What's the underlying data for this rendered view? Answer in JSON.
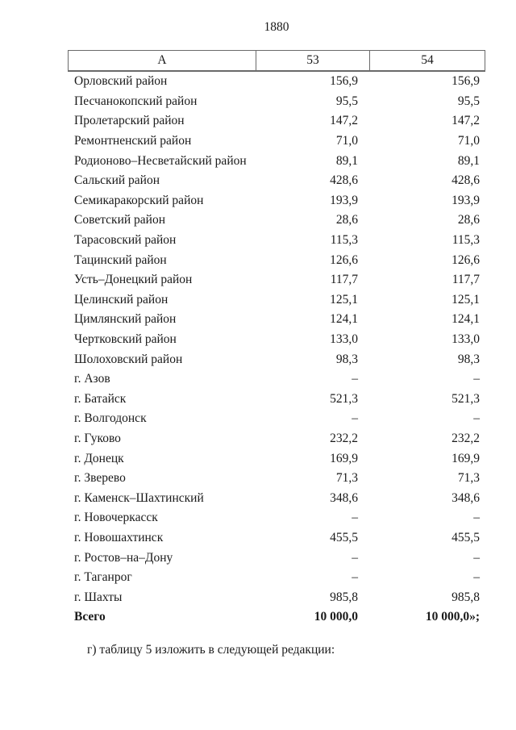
{
  "page": {
    "number": "1880",
    "footer_text": "г) таблицу 5 изложить в следующей редакции:"
  },
  "table": {
    "columns": [
      "А",
      "53",
      "54"
    ],
    "rows": [
      {
        "label": "Орловский район",
        "v53": "156,9",
        "v54": "156,9"
      },
      {
        "label": "Песчанокопский район",
        "v53": "95,5",
        "v54": "95,5"
      },
      {
        "label": "Пролетарский район",
        "v53": "147,2",
        "v54": "147,2"
      },
      {
        "label": "Ремонтненский район",
        "v53": "71,0",
        "v54": "71,0"
      },
      {
        "label": "Родионово–Несветайский район",
        "v53": "89,1",
        "v54": "89,1"
      },
      {
        "label": "Сальский район",
        "v53": "428,6",
        "v54": "428,6"
      },
      {
        "label": "Семикаракорский район",
        "v53": "193,9",
        "v54": "193,9"
      },
      {
        "label": "Советский район",
        "v53": "28,6",
        "v54": "28,6"
      },
      {
        "label": "Тарасовский район",
        "v53": "115,3",
        "v54": "115,3"
      },
      {
        "label": "Тацинский район",
        "v53": "126,6",
        "v54": "126,6"
      },
      {
        "label": "Усть–Донецкий район",
        "v53": "117,7",
        "v54": "117,7"
      },
      {
        "label": "Целинский район",
        "v53": "125,1",
        "v54": "125,1"
      },
      {
        "label": "Цимлянский район",
        "v53": "124,1",
        "v54": "124,1"
      },
      {
        "label": "Чертковский район",
        "v53": "133,0",
        "v54": "133,0"
      },
      {
        "label": "Шолоховский район",
        "v53": "98,3",
        "v54": "98,3"
      },
      {
        "label": "г. Азов",
        "v53": "–",
        "v54": "–"
      },
      {
        "label": "г. Батайск",
        "v53": "521,3",
        "v54": "521,3"
      },
      {
        "label": "г. Волгодонск",
        "v53": "–",
        "v54": "–"
      },
      {
        "label": "г. Гуково",
        "v53": "232,2",
        "v54": "232,2"
      },
      {
        "label": "г. Донецк",
        "v53": "169,9",
        "v54": "169,9"
      },
      {
        "label": "г. Зверево",
        "v53": "71,3",
        "v54": "71,3"
      },
      {
        "label": "г. Каменск–Шахтинский",
        "v53": "348,6",
        "v54": "348,6"
      },
      {
        "label": "г. Новочеркасск",
        "v53": "–",
        "v54": "–"
      },
      {
        "label": "г. Новошахтинск",
        "v53": "455,5",
        "v54": "455,5"
      },
      {
        "label": "г. Ростов–на–Дону",
        "v53": "–",
        "v54": "–"
      },
      {
        "label": "г. Таганрог",
        "v53": "–",
        "v54": "–"
      },
      {
        "label": "г. Шахты",
        "v53": "985,8",
        "v54": "985,8"
      },
      {
        "label": "Всего",
        "v53": "10 000,0",
        "v54": "10 000,0»;",
        "bold": true
      }
    ]
  }
}
